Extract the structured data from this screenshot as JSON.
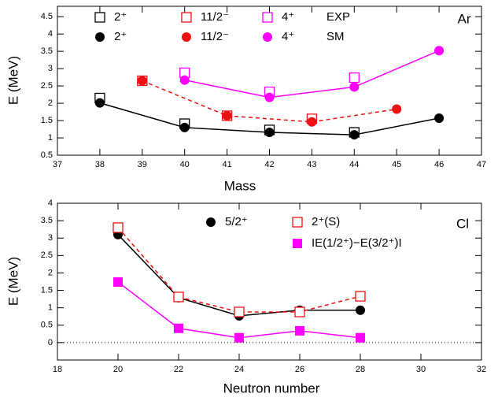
{
  "chart_data": [
    {
      "type": "line",
      "annotation": "Ar",
      "xlabel": "Mass",
      "ylabel": "E (MeV)",
      "xlim": [
        37,
        47
      ],
      "xticks": [
        37,
        38,
        39,
        40,
        41,
        42,
        43,
        44,
        45,
        46,
        47
      ],
      "ylim": [
        0.5,
        4.8
      ],
      "yticks": [
        0.5,
        1,
        1.5,
        2,
        2.5,
        3,
        3.5,
        4,
        4.5
      ],
      "legend_rows": [
        "EXP",
        "SM"
      ],
      "series": [
        {
          "name": "2⁺",
          "color": "#000000",
          "marker": "square-open",
          "line": "none",
          "x": [
            38,
            40,
            42,
            44
          ],
          "values": [
            2.15,
            1.41,
            1.23,
            1.16
          ]
        },
        {
          "name": "2⁺",
          "color": "#000000",
          "marker": "circle",
          "line": "solid",
          "x": [
            38,
            40,
            42,
            44,
            46
          ],
          "values": [
            2.01,
            1.3,
            1.16,
            1.09,
            1.57
          ]
        },
        {
          "name": "11/2⁻",
          "color": "#ee1111",
          "marker": "square-open",
          "line": "none",
          "x": [
            39,
            41,
            43
          ],
          "values": [
            2.65,
            1.64,
            1.55
          ]
        },
        {
          "name": "11/2⁻",
          "color": "#ee1111",
          "marker": "circle",
          "line": "dashed",
          "x": [
            39,
            41,
            43,
            45
          ],
          "values": [
            2.65,
            1.64,
            1.46,
            1.83
          ]
        },
        {
          "name": "4⁺",
          "color": "#ff00ff",
          "marker": "square-open",
          "line": "none",
          "x": [
            40,
            42,
            44
          ],
          "values": [
            2.88,
            2.33,
            2.74
          ]
        },
        {
          "name": "4⁺",
          "color": "#ff00ff",
          "marker": "circle",
          "line": "solid",
          "x": [
            40,
            42,
            44,
            46
          ],
          "values": [
            2.67,
            2.17,
            2.47,
            3.52
          ]
        }
      ]
    },
    {
      "type": "line",
      "annotation": "Cl",
      "xlabel": "Neutron number",
      "ylabel": "E (MeV)",
      "xlim": [
        18,
        32
      ],
      "xticks": [
        18,
        20,
        22,
        24,
        26,
        28,
        30,
        32
      ],
      "ylim": [
        -0.5,
        4
      ],
      "yticks": [
        0,
        0.5,
        1,
        1.5,
        2,
        2.5,
        3,
        3.5,
        4
      ],
      "reference_line": 0,
      "series": [
        {
          "name": "5/2⁺",
          "color": "#000000",
          "marker": "circle",
          "line": "solid",
          "x": [
            20,
            22,
            24,
            26,
            28
          ],
          "values": [
            3.1,
            1.29,
            0.77,
            0.93,
            0.93
          ]
        },
        {
          "name": "2⁺(S)",
          "color": "#ee1111",
          "marker": "square-open",
          "line": "dashed",
          "x": [
            20,
            22,
            24,
            26,
            28
          ],
          "values": [
            3.3,
            1.31,
            0.88,
            0.88,
            1.33
          ]
        },
        {
          "name": "IE(1/2⁺)−E(3/2⁺)I",
          "color": "#ff00ff",
          "marker": "square",
          "line": "solid",
          "x": [
            20,
            22,
            24,
            26,
            28
          ],
          "values": [
            1.74,
            0.41,
            0.14,
            0.34,
            0.14
          ]
        }
      ]
    }
  ]
}
